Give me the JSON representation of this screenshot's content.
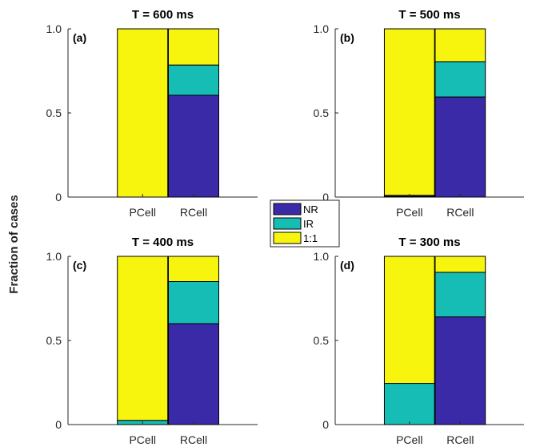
{
  "figure": {
    "ylabel": "Fraction of cases"
  },
  "legend": {
    "items": [
      {
        "label": "NR",
        "color": "#3a2aa8"
      },
      {
        "label": "IR",
        "color": "#15bdb4"
      },
      {
        "label": "1:1",
        "color": "#f7f40e"
      }
    ]
  },
  "chart_data": [
    {
      "type": "bar",
      "stacked": true,
      "title": "T = 600 ms",
      "panel_label": "(a)",
      "categories": [
        "PCell",
        "RCell"
      ],
      "ylim": [
        0,
        1
      ],
      "yticks": [
        {
          "value": 0,
          "label": "0"
        },
        {
          "value": 0.5,
          "label": "0.5"
        },
        {
          "value": 1,
          "label": "1.0"
        }
      ],
      "series": [
        {
          "name": "NR",
          "color": "#3a2aa8",
          "values": [
            0,
            0.605
          ]
        },
        {
          "name": "IR",
          "color": "#15bdb4",
          "values": [
            0,
            0.18
          ]
        },
        {
          "name": "1:1",
          "color": "#f7f40e",
          "values": [
            1.0,
            0.215
          ]
        }
      ]
    },
    {
      "type": "bar",
      "stacked": true,
      "title": "T = 500 ms",
      "panel_label": "(b)",
      "categories": [
        "PCell",
        "RCell"
      ],
      "ylim": [
        0,
        1
      ],
      "yticks": [
        {
          "value": 0,
          "label": "0"
        },
        {
          "value": 0.5,
          "label": "0.5"
        },
        {
          "value": 1,
          "label": "1.0"
        }
      ],
      "series": [
        {
          "name": "NR",
          "color": "#3a2aa8",
          "values": [
            0.005,
            0.595
          ]
        },
        {
          "name": "IR",
          "color": "#15bdb4",
          "values": [
            0.005,
            0.21
          ]
        },
        {
          "name": "1:1",
          "color": "#f7f40e",
          "values": [
            0.99,
            0.195
          ]
        }
      ]
    },
    {
      "type": "bar",
      "stacked": true,
      "title": "T = 400 ms",
      "panel_label": "(c)",
      "categories": [
        "PCell",
        "RCell"
      ],
      "ylim": [
        0,
        1
      ],
      "yticks": [
        {
          "value": 0,
          "label": "0"
        },
        {
          "value": 0.5,
          "label": "0.5"
        },
        {
          "value": 1,
          "label": "1.0"
        }
      ],
      "series": [
        {
          "name": "NR",
          "color": "#3a2aa8",
          "values": [
            0,
            0.6
          ]
        },
        {
          "name": "IR",
          "color": "#15bdb4",
          "values": [
            0.025,
            0.25
          ]
        },
        {
          "name": "1:1",
          "color": "#f7f40e",
          "values": [
            0.975,
            0.15
          ]
        }
      ]
    },
    {
      "type": "bar",
      "stacked": true,
      "title": "T = 300 ms",
      "panel_label": "(d)",
      "categories": [
        "PCell",
        "RCell"
      ],
      "ylim": [
        0,
        1
      ],
      "yticks": [
        {
          "value": 0,
          "label": "0"
        },
        {
          "value": 0.5,
          "label": "0.5"
        },
        {
          "value": 1,
          "label": "1.0"
        }
      ],
      "series": [
        {
          "name": "NR",
          "color": "#3a2aa8",
          "values": [
            0,
            0.64
          ]
        },
        {
          "name": "IR",
          "color": "#15bdb4",
          "values": [
            0.245,
            0.265
          ]
        },
        {
          "name": "1:1",
          "color": "#f7f40e",
          "values": [
            0.755,
            0.095
          ]
        }
      ]
    }
  ]
}
